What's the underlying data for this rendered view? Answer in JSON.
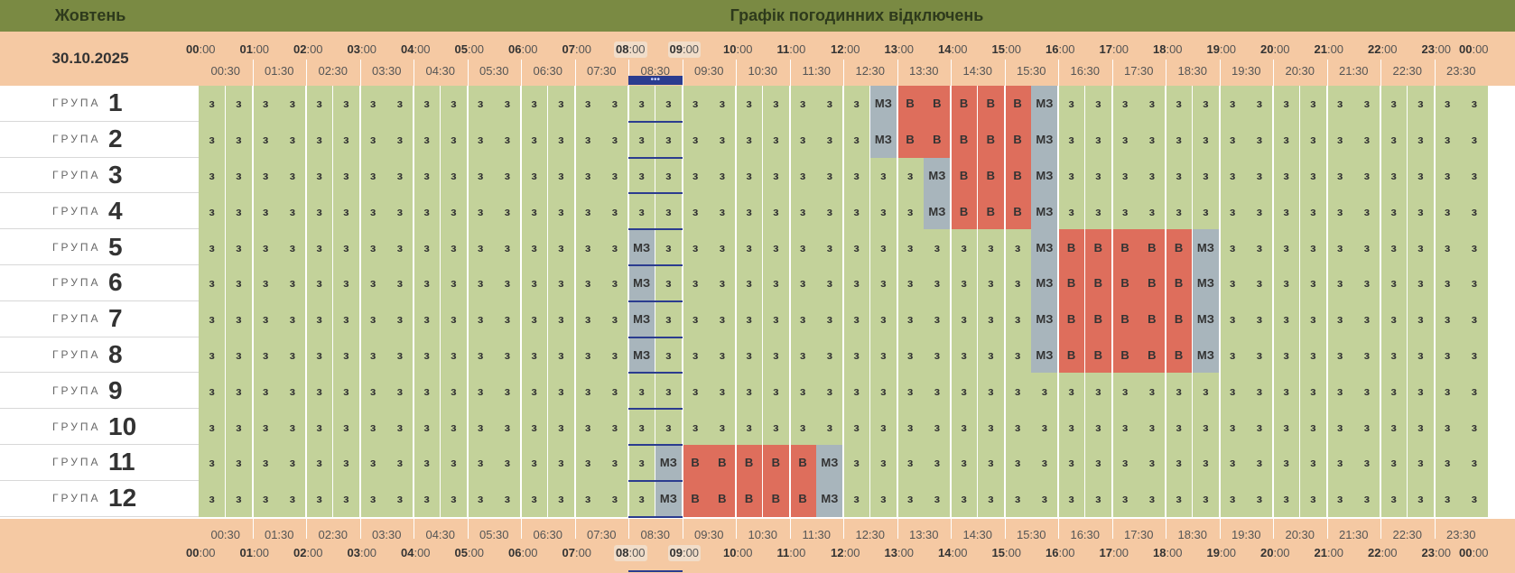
{
  "header": {
    "month": "Жовтень",
    "title": "Графік погодинних відключень",
    "date": "30.10.2025",
    "current_indicator": "•••"
  },
  "group_label": "ГРУПА",
  "hours": [
    "00",
    "01",
    "02",
    "03",
    "04",
    "05",
    "06",
    "07",
    "08",
    "09",
    "10",
    "11",
    "12",
    "13",
    "14",
    "15",
    "16",
    "17",
    "18",
    "19",
    "20",
    "21",
    "22",
    "23",
    "00"
  ],
  "minutes_suffix": ":00",
  "half_hours": [
    "00:30",
    "01:30",
    "02:30",
    "03:30",
    "04:30",
    "05:30",
    "06:30",
    "07:30",
    "08:30",
    "09:30",
    "10:30",
    "11:30",
    "12:30",
    "13:30",
    "14:30",
    "15:30",
    "16:30",
    "17:30",
    "18:30",
    "19:30",
    "20:30",
    "21:30",
    "22:30",
    "23:30"
  ],
  "legend": {
    "z": "з",
    "v": "В",
    "mz": "МЗ"
  },
  "colors": {
    "z": "#c3d29a",
    "v": "#de6e5c",
    "mz": "#a8b5bc",
    "header": "#7a8a43",
    "peach": "#f5c9a3",
    "now": "#2b3c8f"
  },
  "current_slot": 16,
  "groups": [
    {
      "number": "1",
      "slots": [
        {
          "from": 25,
          "to": 25,
          "state": "mz"
        },
        {
          "from": 26,
          "to": 30,
          "state": "v"
        },
        {
          "from": 31,
          "to": 31,
          "state": "mz"
        }
      ]
    },
    {
      "number": "2",
      "slots": [
        {
          "from": 25,
          "to": 25,
          "state": "mz"
        },
        {
          "from": 26,
          "to": 30,
          "state": "v"
        },
        {
          "from": 31,
          "to": 31,
          "state": "mz"
        }
      ]
    },
    {
      "number": "3",
      "slots": [
        {
          "from": 27,
          "to": 27,
          "state": "mz"
        },
        {
          "from": 28,
          "to": 30,
          "state": "v"
        },
        {
          "from": 31,
          "to": 31,
          "state": "mz"
        }
      ]
    },
    {
      "number": "4",
      "slots": [
        {
          "from": 27,
          "to": 27,
          "state": "mz"
        },
        {
          "from": 28,
          "to": 30,
          "state": "v"
        },
        {
          "from": 31,
          "to": 31,
          "state": "mz"
        }
      ]
    },
    {
      "number": "5",
      "slots": [
        {
          "from": 16,
          "to": 16,
          "state": "mz"
        },
        {
          "from": 31,
          "to": 31,
          "state": "mz"
        },
        {
          "from": 32,
          "to": 36,
          "state": "v"
        },
        {
          "from": 37,
          "to": 37,
          "state": "mz"
        }
      ]
    },
    {
      "number": "6",
      "slots": [
        {
          "from": 16,
          "to": 16,
          "state": "mz"
        },
        {
          "from": 31,
          "to": 31,
          "state": "mz"
        },
        {
          "from": 32,
          "to": 36,
          "state": "v"
        },
        {
          "from": 37,
          "to": 37,
          "state": "mz"
        }
      ]
    },
    {
      "number": "7",
      "slots": [
        {
          "from": 16,
          "to": 16,
          "state": "mz"
        },
        {
          "from": 31,
          "to": 31,
          "state": "mz"
        },
        {
          "from": 32,
          "to": 36,
          "state": "v"
        },
        {
          "from": 37,
          "to": 37,
          "state": "mz"
        }
      ]
    },
    {
      "number": "8",
      "slots": [
        {
          "from": 16,
          "to": 16,
          "state": "mz"
        },
        {
          "from": 31,
          "to": 31,
          "state": "mz"
        },
        {
          "from": 32,
          "to": 36,
          "state": "v"
        },
        {
          "from": 37,
          "to": 37,
          "state": "mz"
        }
      ]
    },
    {
      "number": "9",
      "slots": []
    },
    {
      "number": "10",
      "slots": []
    },
    {
      "number": "11",
      "slots": [
        {
          "from": 17,
          "to": 17,
          "state": "mz"
        },
        {
          "from": 18,
          "to": 22,
          "state": "v"
        },
        {
          "from": 23,
          "to": 23,
          "state": "mz"
        }
      ]
    },
    {
      "number": "12",
      "slots": [
        {
          "from": 17,
          "to": 17,
          "state": "mz"
        },
        {
          "from": 18,
          "to": 22,
          "state": "v"
        },
        {
          "from": 23,
          "to": 23,
          "state": "mz"
        }
      ]
    }
  ]
}
